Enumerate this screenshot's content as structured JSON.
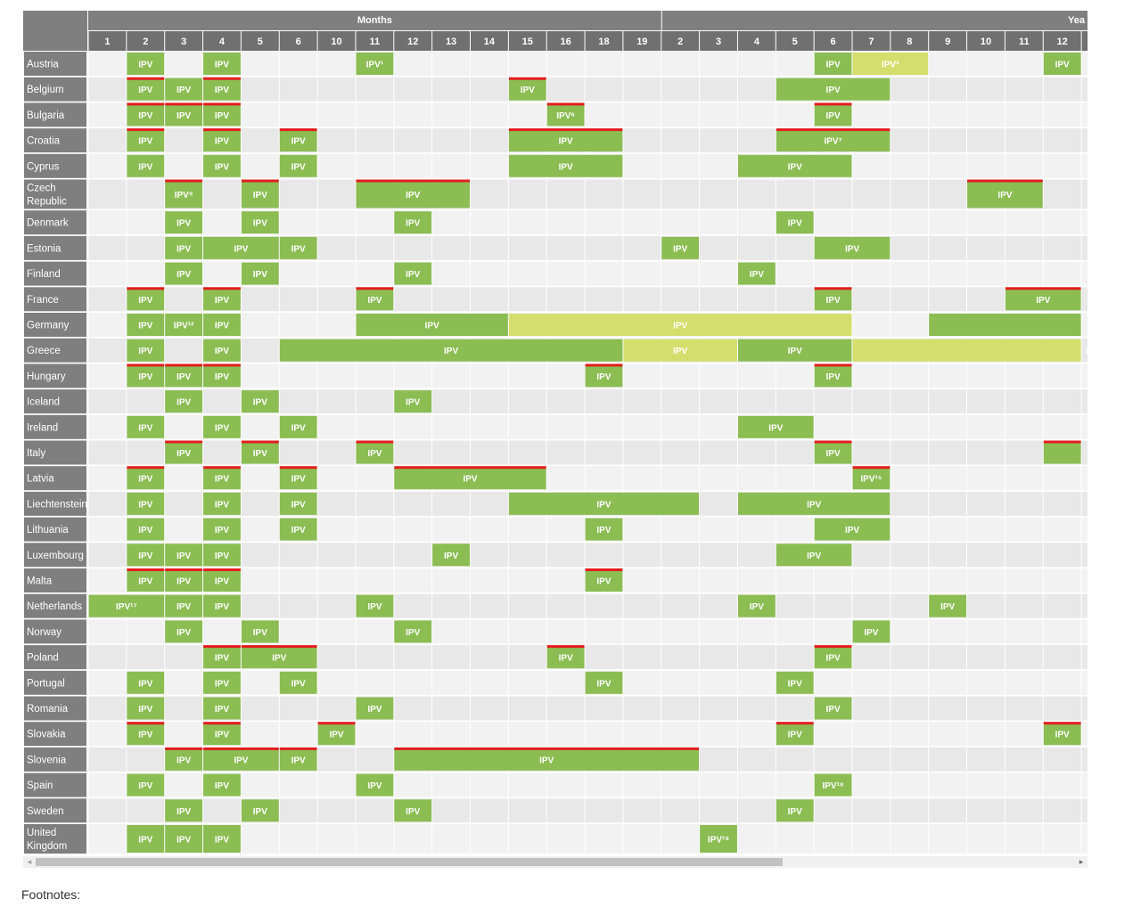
{
  "header": {
    "months_label": "Months",
    "years_label": "Yea",
    "month_cols": [
      "1",
      "2",
      "3",
      "4",
      "5",
      "6",
      "10",
      "11",
      "12",
      "13",
      "14",
      "15",
      "16",
      "18",
      "19"
    ],
    "year_cols": [
      "2",
      "3",
      "4",
      "5",
      "6",
      "7",
      "8",
      "9",
      "10",
      "11",
      "12",
      ""
    ]
  },
  "colors": {
    "green": "#8bbd53",
    "light_green": "#d4de6c",
    "red": "#e31d1d"
  },
  "rows": [
    {
      "country": "Austria",
      "bars": [
        {
          "s": 1,
          "e": 1,
          "l": "IPV",
          "c": "g"
        },
        {
          "s": 3,
          "e": 3,
          "l": "IPV",
          "c": "g"
        },
        {
          "s": 7,
          "e": 7,
          "l": "IPV¹",
          "c": "g"
        },
        {
          "s": 19,
          "e": 19,
          "l": "IPV",
          "c": "g"
        },
        {
          "s": 20,
          "e": 21,
          "l": "IPV²",
          "c": "y"
        },
        {
          "s": 25,
          "e": 25,
          "l": "IPV",
          "c": "g"
        }
      ]
    },
    {
      "country": "Belgium",
      "bars": [
        {
          "s": 1,
          "e": 1,
          "l": "IPV",
          "c": "g",
          "r": 1
        },
        {
          "s": 2,
          "e": 2,
          "l": "IPV",
          "c": "g"
        },
        {
          "s": 3,
          "e": 3,
          "l": "IPV",
          "c": "g",
          "r": 1
        },
        {
          "s": 11,
          "e": 11,
          "l": "IPV",
          "c": "g",
          "r": 1
        },
        {
          "s": 18,
          "e": 20,
          "l": "IPV",
          "c": "g"
        }
      ]
    },
    {
      "country": "Bulgaria",
      "bars": [
        {
          "s": 1,
          "e": 1,
          "l": "IPV",
          "c": "g",
          "r": 1
        },
        {
          "s": 2,
          "e": 2,
          "l": "IPV",
          "c": "g",
          "r": 1
        },
        {
          "s": 3,
          "e": 3,
          "l": "IPV",
          "c": "g",
          "r": 1
        },
        {
          "s": 12,
          "e": 12,
          "l": "IPV⁶",
          "c": "g",
          "r": 1
        },
        {
          "s": 19,
          "e": 19,
          "l": "IPV",
          "c": "g",
          "r": 1
        }
      ]
    },
    {
      "country": "Croatia",
      "bars": [
        {
          "s": 1,
          "e": 1,
          "l": "IPV",
          "c": "g",
          "r": 1
        },
        {
          "s": 3,
          "e": 3,
          "l": "IPV",
          "c": "g",
          "r": 1
        },
        {
          "s": 5,
          "e": 5,
          "l": "IPV",
          "c": "g",
          "r": 1
        },
        {
          "s": 11,
          "e": 13,
          "l": "IPV",
          "c": "g",
          "r": 1
        },
        {
          "s": 18,
          "e": 20,
          "l": "IPV⁷",
          "c": "g",
          "r": 1
        }
      ]
    },
    {
      "country": "Cyprus",
      "bars": [
        {
          "s": 1,
          "e": 1,
          "l": "IPV",
          "c": "g"
        },
        {
          "s": 3,
          "e": 3,
          "l": "IPV",
          "c": "g"
        },
        {
          "s": 5,
          "e": 5,
          "l": "IPV",
          "c": "g"
        },
        {
          "s": 11,
          "e": 13,
          "l": "IPV",
          "c": "g"
        },
        {
          "s": 17,
          "e": 19,
          "l": "IPV",
          "c": "g"
        }
      ]
    },
    {
      "country": "Czech Republic",
      "bars": [
        {
          "s": 2,
          "e": 2,
          "l": "IPV⁹",
          "c": "g",
          "r": 1
        },
        {
          "s": 4,
          "e": 4,
          "l": "IPV",
          "c": "g",
          "r": 1
        },
        {
          "s": 7,
          "e": 9,
          "l": "IPV",
          "c": "g",
          "r": 1
        },
        {
          "s": 23,
          "e": 24,
          "l": "IPV",
          "c": "g",
          "r": 1
        }
      ]
    },
    {
      "country": "Denmark",
      "bars": [
        {
          "s": 2,
          "e": 2,
          "l": "IPV",
          "c": "g"
        },
        {
          "s": 4,
          "e": 4,
          "l": "IPV",
          "c": "g"
        },
        {
          "s": 8,
          "e": 8,
          "l": "IPV",
          "c": "g"
        },
        {
          "s": 18,
          "e": 18,
          "l": "IPV",
          "c": "g"
        }
      ]
    },
    {
      "country": "Estonia",
      "bars": [
        {
          "s": 2,
          "e": 2,
          "l": "IPV",
          "c": "g"
        },
        {
          "s": 3,
          "e": 4,
          "l": "IPV",
          "c": "g"
        },
        {
          "s": 5,
          "e": 5,
          "l": "IPV",
          "c": "g"
        },
        {
          "s": 15,
          "e": 15,
          "l": "IPV",
          "c": "g"
        },
        {
          "s": 19,
          "e": 20,
          "l": "IPV",
          "c": "g"
        }
      ]
    },
    {
      "country": "Finland",
      "bars": [
        {
          "s": 2,
          "e": 2,
          "l": "IPV",
          "c": "g"
        },
        {
          "s": 4,
          "e": 4,
          "l": "IPV",
          "c": "g"
        },
        {
          "s": 8,
          "e": 8,
          "l": "IPV",
          "c": "g"
        },
        {
          "s": 17,
          "e": 17,
          "l": "IPV",
          "c": "g"
        }
      ]
    },
    {
      "country": "France",
      "bars": [
        {
          "s": 1,
          "e": 1,
          "l": "IPV",
          "c": "g",
          "r": 1
        },
        {
          "s": 3,
          "e": 3,
          "l": "IPV",
          "c": "g",
          "r": 1
        },
        {
          "s": 7,
          "e": 7,
          "l": "IPV",
          "c": "g",
          "r": 1
        },
        {
          "s": 19,
          "e": 19,
          "l": "IPV",
          "c": "g",
          "r": 1
        },
        {
          "s": 24,
          "e": 25,
          "l": "IPV",
          "c": "g",
          "r": 1
        }
      ]
    },
    {
      "country": "Germany",
      "bars": [
        {
          "s": 1,
          "e": 1,
          "l": "IPV",
          "c": "g"
        },
        {
          "s": 2,
          "e": 2,
          "l": "IPV¹²",
          "c": "g"
        },
        {
          "s": 3,
          "e": 3,
          "l": "IPV",
          "c": "g"
        },
        {
          "s": 7,
          "e": 10,
          "l": "IPV",
          "c": "g"
        },
        {
          "s": 11,
          "e": 19,
          "l": "IPV",
          "c": "y"
        },
        {
          "s": 22,
          "e": 25,
          "l": "",
          "c": "g"
        }
      ]
    },
    {
      "country": "Greece",
      "bars": [
        {
          "s": 1,
          "e": 1,
          "l": "IPV",
          "c": "g"
        },
        {
          "s": 3,
          "e": 3,
          "l": "IPV",
          "c": "g"
        },
        {
          "s": 5,
          "e": 13,
          "l": "IPV",
          "c": "g"
        },
        {
          "s": 14,
          "e": 16,
          "l": "IPV",
          "c": "y"
        },
        {
          "s": 17,
          "e": 19,
          "l": "IPV",
          "c": "g"
        },
        {
          "s": 20,
          "e": 25,
          "l": "IPV",
          "c": "y",
          "a": "end"
        }
      ]
    },
    {
      "country": "Hungary",
      "bars": [
        {
          "s": 1,
          "e": 1,
          "l": "IPV",
          "c": "g",
          "r": 1
        },
        {
          "s": 2,
          "e": 2,
          "l": "IPV",
          "c": "g",
          "r": 1
        },
        {
          "s": 3,
          "e": 3,
          "l": "IPV",
          "c": "g",
          "r": 1
        },
        {
          "s": 13,
          "e": 13,
          "l": "IPV",
          "c": "g",
          "r": 1
        },
        {
          "s": 19,
          "e": 19,
          "l": "IPV",
          "c": "g",
          "r": 1
        }
      ]
    },
    {
      "country": "Iceland",
      "bars": [
        {
          "s": 2,
          "e": 2,
          "l": "IPV",
          "c": "g"
        },
        {
          "s": 4,
          "e": 4,
          "l": "IPV",
          "c": "g"
        },
        {
          "s": 8,
          "e": 8,
          "l": "IPV",
          "c": "g"
        }
      ]
    },
    {
      "country": "Ireland",
      "bars": [
        {
          "s": 1,
          "e": 1,
          "l": "IPV",
          "c": "g"
        },
        {
          "s": 3,
          "e": 3,
          "l": "IPV",
          "c": "g"
        },
        {
          "s": 5,
          "e": 5,
          "l": "IPV",
          "c": "g"
        },
        {
          "s": 17,
          "e": 18,
          "l": "IPV",
          "c": "g"
        }
      ]
    },
    {
      "country": "Italy",
      "bars": [
        {
          "s": 2,
          "e": 2,
          "l": "IPV",
          "c": "g",
          "r": 1
        },
        {
          "s": 4,
          "e": 4,
          "l": "IPV",
          "c": "g",
          "r": 1
        },
        {
          "s": 7,
          "e": 7,
          "l": "IPV",
          "c": "g",
          "r": 1
        },
        {
          "s": 19,
          "e": 19,
          "l": "IPV",
          "c": "g",
          "r": 1
        },
        {
          "s": 25,
          "e": 25,
          "l": "",
          "c": "g",
          "r": 1
        }
      ]
    },
    {
      "country": "Latvia",
      "bars": [
        {
          "s": 1,
          "e": 1,
          "l": "IPV",
          "c": "g",
          "r": 1
        },
        {
          "s": 3,
          "e": 3,
          "l": "IPV",
          "c": "g",
          "r": 1
        },
        {
          "s": 5,
          "e": 5,
          "l": "IPV",
          "c": "g",
          "r": 1
        },
        {
          "s": 8,
          "e": 11,
          "l": "IPV",
          "c": "g",
          "r": 1
        },
        {
          "s": 20,
          "e": 20,
          "l": "IPV¹⁵",
          "c": "g",
          "r": 1
        }
      ]
    },
    {
      "country": "Liechtenstein",
      "bars": [
        {
          "s": 1,
          "e": 1,
          "l": "IPV",
          "c": "g"
        },
        {
          "s": 3,
          "e": 3,
          "l": "IPV",
          "c": "g"
        },
        {
          "s": 5,
          "e": 5,
          "l": "IPV",
          "c": "g"
        },
        {
          "s": 11,
          "e": 15,
          "l": "IPV",
          "c": "g"
        },
        {
          "s": 17,
          "e": 20,
          "l": "IPV",
          "c": "g"
        }
      ]
    },
    {
      "country": "Lithuania",
      "bars": [
        {
          "s": 1,
          "e": 1,
          "l": "IPV",
          "c": "g"
        },
        {
          "s": 3,
          "e": 3,
          "l": "IPV",
          "c": "g"
        },
        {
          "s": 5,
          "e": 5,
          "l": "IPV",
          "c": "g"
        },
        {
          "s": 13,
          "e": 13,
          "l": "IPV",
          "c": "g"
        },
        {
          "s": 19,
          "e": 20,
          "l": "IPV",
          "c": "g"
        }
      ]
    },
    {
      "country": "Luxembourg",
      "bars": [
        {
          "s": 1,
          "e": 1,
          "l": "IPV",
          "c": "g"
        },
        {
          "s": 2,
          "e": 2,
          "l": "IPV",
          "c": "g"
        },
        {
          "s": 3,
          "e": 3,
          "l": "IPV",
          "c": "g"
        },
        {
          "s": 9,
          "e": 9,
          "l": "IPV",
          "c": "g"
        },
        {
          "s": 18,
          "e": 19,
          "l": "IPV",
          "c": "g"
        }
      ]
    },
    {
      "country": "Malta",
      "bars": [
        {
          "s": 1,
          "e": 1,
          "l": "IPV",
          "c": "g",
          "r": 1
        },
        {
          "s": 2,
          "e": 2,
          "l": "IPV",
          "c": "g",
          "r": 1
        },
        {
          "s": 3,
          "e": 3,
          "l": "IPV",
          "c": "g",
          "r": 1
        },
        {
          "s": 13,
          "e": 13,
          "l": "IPV",
          "c": "g",
          "r": 1
        }
      ]
    },
    {
      "country": "Netherlands",
      "bars": [
        {
          "s": 0,
          "e": 1,
          "l": "IPV¹⁷",
          "c": "g"
        },
        {
          "s": 2,
          "e": 2,
          "l": "IPV",
          "c": "g"
        },
        {
          "s": 3,
          "e": 3,
          "l": "IPV",
          "c": "g"
        },
        {
          "s": 7,
          "e": 7,
          "l": "IPV",
          "c": "g"
        },
        {
          "s": 17,
          "e": 17,
          "l": "IPV",
          "c": "g"
        },
        {
          "s": 22,
          "e": 22,
          "l": "IPV",
          "c": "g"
        }
      ]
    },
    {
      "country": "Norway",
      "bars": [
        {
          "s": 2,
          "e": 2,
          "l": "IPV",
          "c": "g"
        },
        {
          "s": 4,
          "e": 4,
          "l": "IPV",
          "c": "g"
        },
        {
          "s": 8,
          "e": 8,
          "l": "IPV",
          "c": "g"
        },
        {
          "s": 20,
          "e": 20,
          "l": "IPV",
          "c": "g"
        }
      ]
    },
    {
      "country": "Poland",
      "bars": [
        {
          "s": 3,
          "e": 3,
          "l": "IPV",
          "c": "g",
          "r": 1
        },
        {
          "s": 4,
          "e": 5,
          "l": "IPV",
          "c": "g",
          "r": 1
        },
        {
          "s": 12,
          "e": 12,
          "l": "IPV",
          "c": "g",
          "r": 1
        },
        {
          "s": 19,
          "e": 19,
          "l": "IPV",
          "c": "g",
          "r": 1
        }
      ]
    },
    {
      "country": "Portugal",
      "bars": [
        {
          "s": 1,
          "e": 1,
          "l": "IPV",
          "c": "g"
        },
        {
          "s": 3,
          "e": 3,
          "l": "IPV",
          "c": "g"
        },
        {
          "s": 5,
          "e": 5,
          "l": "IPV",
          "c": "g"
        },
        {
          "s": 13,
          "e": 13,
          "l": "IPV",
          "c": "g"
        },
        {
          "s": 18,
          "e": 18,
          "l": "IPV",
          "c": "g"
        }
      ]
    },
    {
      "country": "Romania",
      "bars": [
        {
          "s": 1,
          "e": 1,
          "l": "IPV",
          "c": "g"
        },
        {
          "s": 3,
          "e": 3,
          "l": "IPV",
          "c": "g"
        },
        {
          "s": 7,
          "e": 7,
          "l": "IPV",
          "c": "g"
        },
        {
          "s": 19,
          "e": 19,
          "l": "IPV",
          "c": "g"
        }
      ]
    },
    {
      "country": "Slovakia",
      "bars": [
        {
          "s": 1,
          "e": 1,
          "l": "IPV",
          "c": "g",
          "r": 1
        },
        {
          "s": 3,
          "e": 3,
          "l": "IPV",
          "c": "g",
          "r": 1
        },
        {
          "s": 6,
          "e": 6,
          "l": "IPV",
          "c": "g",
          "r": 1
        },
        {
          "s": 18,
          "e": 18,
          "l": "IPV",
          "c": "g",
          "r": 1
        },
        {
          "s": 25,
          "e": 25,
          "l": "IPV",
          "c": "g",
          "r": 1
        }
      ]
    },
    {
      "country": "Slovenia",
      "bars": [
        {
          "s": 2,
          "e": 2,
          "l": "IPV",
          "c": "g",
          "r": 1
        },
        {
          "s": 3,
          "e": 4,
          "l": "IPV",
          "c": "g",
          "r": 1
        },
        {
          "s": 5,
          "e": 5,
          "l": "IPV",
          "c": "g",
          "r": 1
        },
        {
          "s": 8,
          "e": 15,
          "l": "IPV",
          "c": "g",
          "r": 1
        }
      ]
    },
    {
      "country": "Spain",
      "bars": [
        {
          "s": 1,
          "e": 1,
          "l": "IPV",
          "c": "g"
        },
        {
          "s": 3,
          "e": 3,
          "l": "IPV",
          "c": "g"
        },
        {
          "s": 7,
          "e": 7,
          "l": "IPV",
          "c": "g"
        },
        {
          "s": 19,
          "e": 19,
          "l": "IPV¹⁸",
          "c": "g"
        }
      ]
    },
    {
      "country": "Sweden",
      "bars": [
        {
          "s": 2,
          "e": 2,
          "l": "IPV",
          "c": "g"
        },
        {
          "s": 4,
          "e": 4,
          "l": "IPV",
          "c": "g"
        },
        {
          "s": 8,
          "e": 8,
          "l": "IPV",
          "c": "g"
        },
        {
          "s": 18,
          "e": 18,
          "l": "IPV",
          "c": "g"
        }
      ]
    },
    {
      "country": "United Kingdom",
      "bars": [
        {
          "s": 1,
          "e": 1,
          "l": "IPV",
          "c": "g"
        },
        {
          "s": 2,
          "e": 2,
          "l": "IPV",
          "c": "g"
        },
        {
          "s": 3,
          "e": 3,
          "l": "IPV",
          "c": "g"
        },
        {
          "s": 16,
          "e": 16,
          "l": "IPV¹⁹",
          "c": "g"
        }
      ]
    }
  ],
  "scrollbar": {
    "left_arrow": "◂",
    "right_arrow": "▸"
  },
  "footnotes_label": "Footnotes:"
}
